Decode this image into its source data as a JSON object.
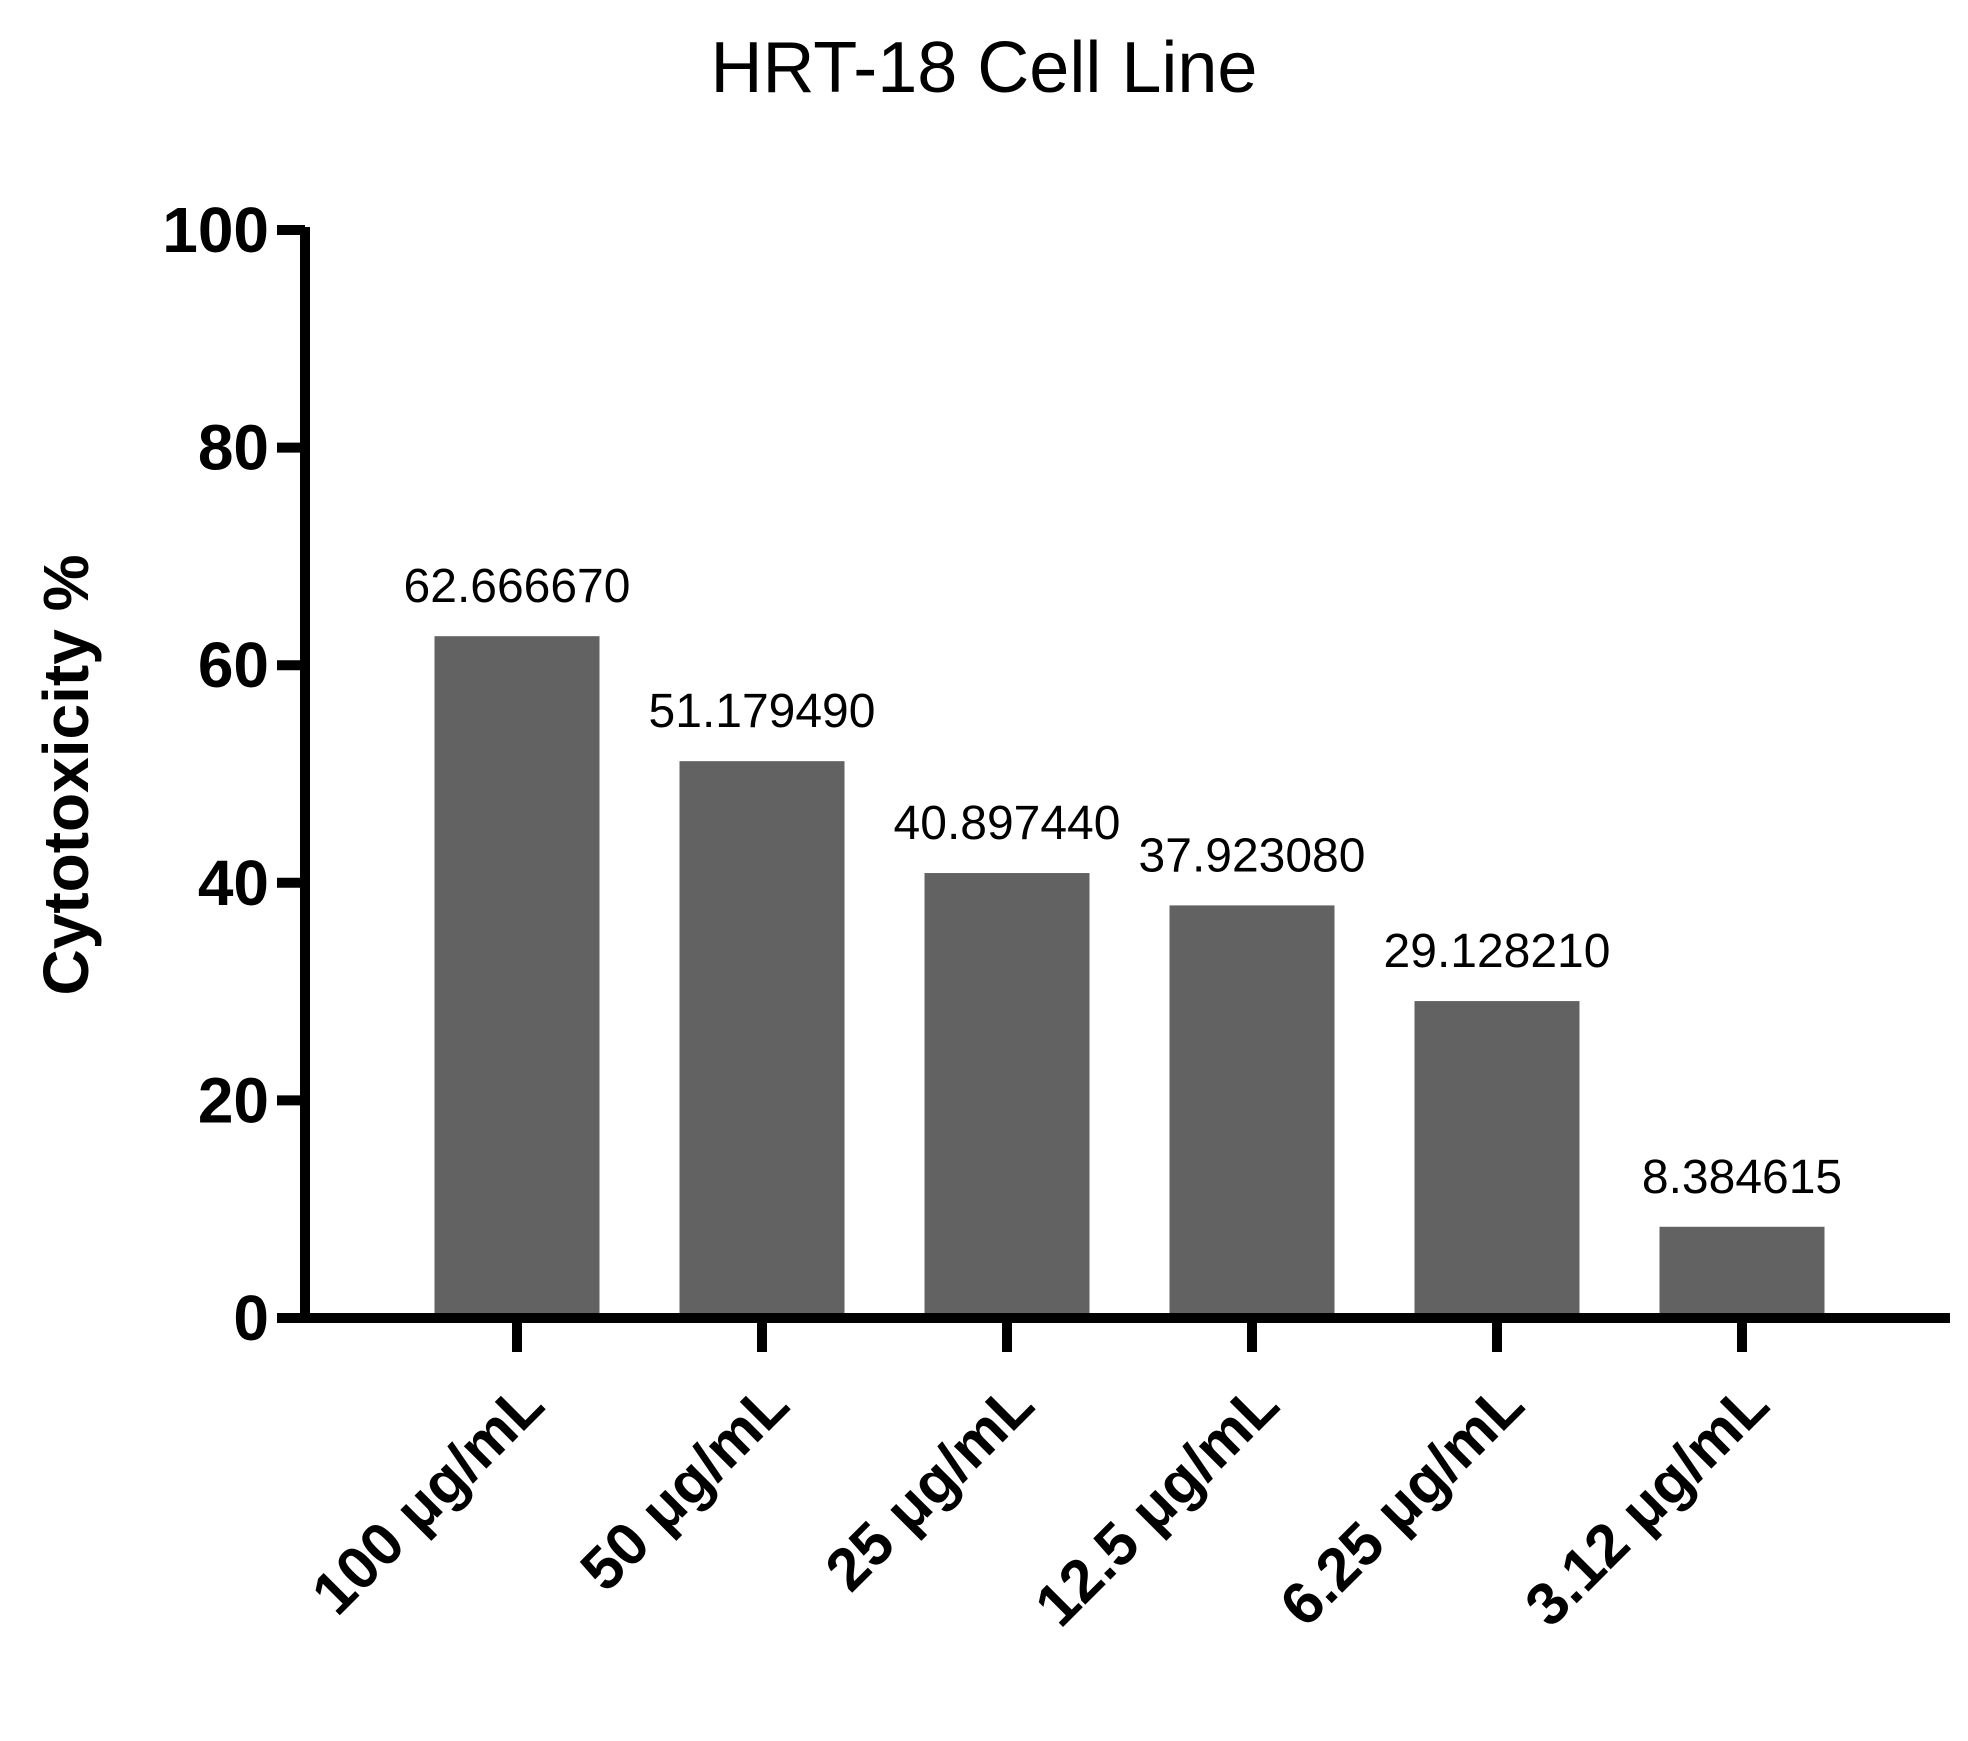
{
  "chart_data": {
    "type": "bar",
    "title": "HRT-18  Cell Line",
    "xlabel": "",
    "ylabel": "Cytotoxicity %",
    "ylim": [
      0,
      100
    ],
    "yticks": [
      "0",
      "20",
      "40",
      "60",
      "80",
      "100"
    ],
    "categories": [
      "100 μg/mL",
      "50 μg/mL",
      "25 μg/mL",
      "12.5 μg/mL",
      "6.25 μg/mL",
      "3.12 μg/mL"
    ],
    "values": [
      62.66667,
      51.17949,
      40.89744,
      37.92308,
      29.12821,
      8.384615
    ],
    "data_labels": [
      "62.666670",
      "51.179490",
      "40.897440",
      "37.923080",
      "29.128210",
      "8.384615"
    ],
    "bar_color": "#626262",
    "axis_color": "#000000",
    "grid": false,
    "legend": "none"
  }
}
